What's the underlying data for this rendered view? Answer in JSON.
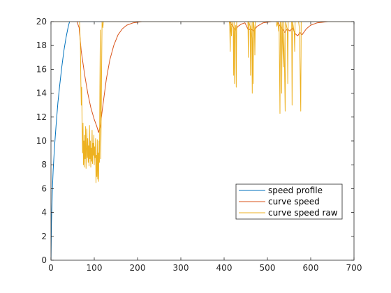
{
  "chart_data": {
    "type": "line",
    "title": "",
    "xlabel": "",
    "ylabel": "",
    "xlim": [
      0,
      700
    ],
    "ylim": [
      0,
      20
    ],
    "xticks": [
      0,
      100,
      200,
      300,
      400,
      500,
      600,
      700
    ],
    "yticks": [
      0,
      2,
      4,
      6,
      8,
      10,
      12,
      14,
      16,
      18,
      20
    ],
    "grid": false,
    "legend_position": "bottom-right",
    "series": [
      {
        "name": "speed profile",
        "color": "#0072BD",
        "points": [
          [
            0,
            0
          ],
          [
            1,
            3
          ],
          [
            3,
            5.6
          ],
          [
            5,
            7.5
          ],
          [
            8,
            9.4
          ],
          [
            12,
            11.4
          ],
          [
            16,
            13.2
          ],
          [
            20,
            14.6
          ],
          [
            25,
            16.2
          ],
          [
            30,
            17.6
          ],
          [
            35,
            18.7
          ],
          [
            40,
            19.6
          ],
          [
            43,
            20
          ],
          [
            700,
            20
          ]
        ]
      },
      {
        "name": "curve speed",
        "color": "#D95319",
        "points": [
          [
            0,
            20
          ],
          [
            60,
            20
          ],
          [
            65,
            19.5
          ],
          [
            70,
            17.5
          ],
          [
            78,
            15.5
          ],
          [
            85,
            14
          ],
          [
            92,
            12.8
          ],
          [
            100,
            11.8
          ],
          [
            106,
            11.2
          ],
          [
            110,
            10.7
          ],
          [
            114,
            11.3
          ],
          [
            120,
            13
          ],
          [
            128,
            15.2
          ],
          [
            136,
            16.8
          ],
          [
            145,
            18
          ],
          [
            155,
            18.9
          ],
          [
            165,
            19.4
          ],
          [
            175,
            19.7
          ],
          [
            190,
            19.9
          ],
          [
            210,
            20
          ],
          [
            412,
            20
          ],
          [
            416,
            19.8
          ],
          [
            420,
            19.6
          ],
          [
            426,
            19.3
          ],
          [
            432,
            19.6
          ],
          [
            440,
            19.8
          ],
          [
            448,
            19.9
          ],
          [
            456,
            19.3
          ],
          [
            462,
            19.4
          ],
          [
            468,
            19.2
          ],
          [
            476,
            19.6
          ],
          [
            490,
            19.9
          ],
          [
            510,
            20
          ],
          [
            524,
            20
          ],
          [
            528,
            19.7
          ],
          [
            534,
            19.4
          ],
          [
            540,
            19.1
          ],
          [
            546,
            19.4
          ],
          [
            552,
            19.2
          ],
          [
            558,
            19.5
          ],
          [
            564,
            19.0
          ],
          [
            570,
            18.8
          ],
          [
            575,
            19.1
          ],
          [
            580,
            18.9
          ],
          [
            590,
            19.4
          ],
          [
            600,
            19.7
          ],
          [
            615,
            19.9
          ],
          [
            640,
            20
          ],
          [
            700,
            20
          ]
        ]
      },
      {
        "name": "curve speed raw",
        "color": "#EDB120",
        "points": [
          [
            0,
            20
          ],
          [
            66,
            20
          ],
          [
            68,
            18
          ],
          [
            69,
            15
          ],
          [
            70,
            13
          ],
          [
            71,
            14.5
          ],
          [
            72,
            11
          ],
          [
            73,
            9
          ],
          [
            74,
            11.5
          ],
          [
            75,
            8
          ],
          [
            76,
            10
          ],
          [
            77,
            7.8
          ],
          [
            78,
            10.5
          ],
          [
            79,
            8.5
          ],
          [
            80,
            11.2
          ],
          [
            81,
            7.7
          ],
          [
            82,
            9.2
          ],
          [
            83,
            11
          ],
          [
            84,
            8.6
          ],
          [
            85,
            10.2
          ],
          [
            86,
            8.2
          ],
          [
            87,
            9.6
          ],
          [
            88,
            7.9
          ],
          [
            89,
            11.3
          ],
          [
            90,
            8.5
          ],
          [
            91,
            10
          ],
          [
            92,
            7.8
          ],
          [
            93,
            9.4
          ],
          [
            94,
            8.3
          ],
          [
            95,
            10.9
          ],
          [
            96,
            8.1
          ],
          [
            97,
            9.8
          ],
          [
            98,
            8.8
          ],
          [
            99,
            10.5
          ],
          [
            100,
            8
          ],
          [
            101,
            9.5
          ],
          [
            102,
            8.6
          ],
          [
            103,
            10.2
          ],
          [
            104,
            6.5
          ],
          [
            105,
            8.8
          ],
          [
            106,
            7
          ],
          [
            107,
            10.1
          ],
          [
            108,
            6.8
          ],
          [
            109,
            9
          ],
          [
            110,
            6.6
          ],
          [
            111,
            10
          ],
          [
            112,
            8.2
          ],
          [
            113,
            14.5
          ],
          [
            114,
            19.3
          ],
          [
            115,
            8.5
          ],
          [
            116,
            12
          ],
          [
            117,
            16
          ],
          [
            118,
            20
          ],
          [
            120,
            19.5
          ],
          [
            121,
            20
          ],
          [
            412,
            20
          ],
          [
            413,
            19.6
          ],
          [
            414,
            17.5
          ],
          [
            415,
            20
          ],
          [
            417,
            18.8
          ],
          [
            418,
            20
          ],
          [
            421,
            19.5
          ],
          [
            422,
            15.5
          ],
          [
            423,
            20
          ],
          [
            424,
            14.8
          ],
          [
            425,
            19.2
          ],
          [
            427,
            19.7
          ],
          [
            428,
            14.5
          ],
          [
            429,
            20
          ],
          [
            455,
            20
          ],
          [
            456,
            17
          ],
          [
            457,
            20
          ],
          [
            460,
            19.6
          ],
          [
            461,
            15.5
          ],
          [
            462,
            20
          ],
          [
            464,
            18.6
          ],
          [
            465,
            14
          ],
          [
            466,
            20
          ],
          [
            467,
            14.8
          ],
          [
            468,
            20
          ],
          [
            470,
            19.4
          ],
          [
            471,
            17.2
          ],
          [
            472,
            20
          ],
          [
            520,
            20
          ],
          [
            522,
            19.6
          ],
          [
            524,
            20
          ],
          [
            526,
            19.2
          ],
          [
            527,
            19.8
          ],
          [
            529,
            12.3
          ],
          [
            530,
            20
          ],
          [
            532,
            19.5
          ],
          [
            533,
            14
          ],
          [
            534,
            20
          ],
          [
            537,
            16.2
          ],
          [
            538,
            20
          ],
          [
            541,
            12.5
          ],
          [
            542,
            20
          ],
          [
            546,
            19.3
          ],
          [
            547,
            14.8
          ],
          [
            548,
            20
          ],
          [
            556,
            20
          ],
          [
            557,
            13
          ],
          [
            558,
            20
          ],
          [
            562,
            19.1
          ],
          [
            563,
            17.5
          ],
          [
            564,
            20
          ],
          [
            572,
            20
          ],
          [
            574,
            19.4
          ],
          [
            577,
            12.5
          ],
          [
            578,
            20
          ],
          [
            580,
            20
          ],
          [
            700,
            20
          ]
        ]
      }
    ]
  }
}
